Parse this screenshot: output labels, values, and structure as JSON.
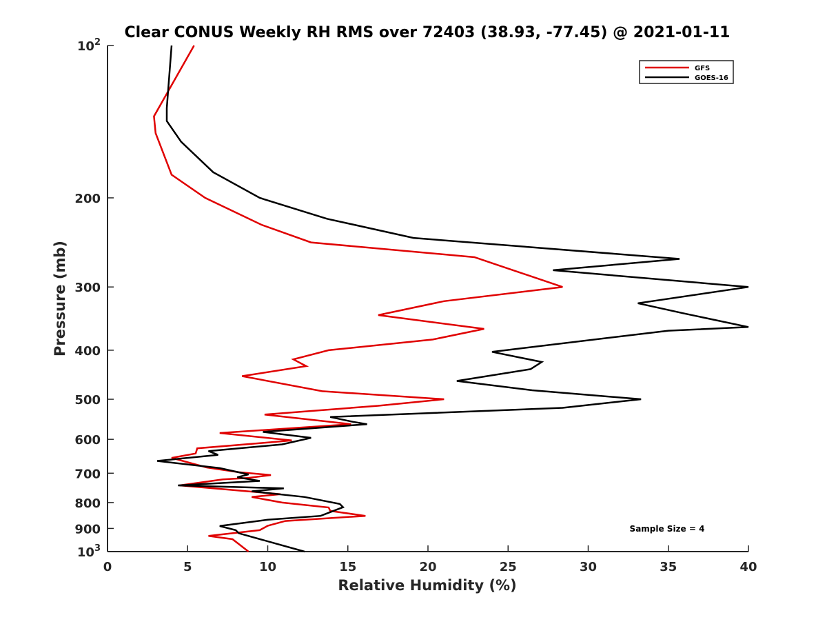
{
  "chart_data": {
    "type": "line",
    "title": "Clear CONUS Weekly RH RMS over 72403 (38.93, -77.45) @ 2021-01-11",
    "xlabel": "Relative Humidity (%)",
    "ylabel": "Pressure (mb)",
    "xlim": [
      0,
      40
    ],
    "ylim": [
      100,
      1000
    ],
    "yscale": "log",
    "y_reversed": true,
    "grid": false,
    "x_ticks": [
      0,
      5,
      10,
      15,
      20,
      25,
      30,
      35,
      40
    ],
    "y_ticks": [
      {
        "value": 100,
        "label": "10",
        "sup": "2"
      },
      {
        "value": 200,
        "label": "200",
        "sup": ""
      },
      {
        "value": 300,
        "label": "300",
        "sup": ""
      },
      {
        "value": 400,
        "label": "400",
        "sup": ""
      },
      {
        "value": 500,
        "label": "500",
        "sup": ""
      },
      {
        "value": 600,
        "label": "600",
        "sup": ""
      },
      {
        "value": 700,
        "label": "700",
        "sup": ""
      },
      {
        "value": 800,
        "label": "800",
        "sup": ""
      },
      {
        "value": 900,
        "label": "900",
        "sup": ""
      },
      {
        "value": 1000,
        "label": "10",
        "sup": "3"
      }
    ],
    "legend_position": "top-right",
    "annotation": "Sample Size = 4",
    "series": [
      {
        "name": "GFS",
        "color": "#e00000",
        "x": [
          5.4,
          2.9,
          3.0,
          4.0,
          6.1,
          9.6,
          12.7,
          22.9,
          28.4,
          21.0,
          16.9,
          23.5,
          20.3,
          13.8,
          11.6,
          12.4,
          8.4,
          13.4,
          21.0,
          16.9,
          9.8,
          15.2,
          7.0,
          11.5,
          9.7,
          5.6,
          5.5,
          4.0,
          6.2,
          8.2,
          10.2,
          8.8,
          7.2,
          4.5,
          10.8,
          9.0,
          10.9,
          13.8,
          13.9,
          16.1,
          11.1,
          10.0,
          9.5,
          6.3,
          7.8,
          8.8
        ],
        "y": [
          100,
          138,
          149,
          180,
          200,
          226,
          245,
          262,
          300,
          320,
          341,
          363,
          381,
          400,
          417,
          430,
          450,
          482,
          500,
          515,
          536,
          560,
          583,
          603,
          610,
          625,
          640,
          653,
          682,
          697,
          706,
          715,
          720,
          740,
          770,
          780,
          800,
          818,
          831,
          850,
          870,
          889,
          907,
          931,
          945,
          1000
        ]
      },
      {
        "name": "GOES-16",
        "color": "#000000",
        "x": [
          4.0,
          3.7,
          3.7,
          4.6,
          6.6,
          9.5,
          13.7,
          19.1,
          35.7,
          27.8,
          40.0,
          33.1,
          35.9,
          40.0,
          35.0,
          24.0,
          27.1,
          26.4,
          21.8,
          26.5,
          33.3,
          28.4,
          13.9,
          15.3,
          16.2,
          9.7,
          12.7,
          10.9,
          6.3,
          6.9,
          3.1,
          7.0,
          8.8,
          8.1,
          9.5,
          4.4,
          11.0,
          9.0,
          12.3,
          14.5,
          14.7,
          13.3,
          10.0,
          7.0,
          8.0,
          8.2,
          12.3
        ],
        "y": [
          100,
          133,
          141,
          155,
          178,
          200,
          220,
          240,
          264,
          278,
          300,
          323,
          338,
          360,
          366,
          403,
          422,
          436,
          460,
          480,
          500,
          520,
          542,
          554,
          560,
          580,
          596,
          614,
          633,
          644,
          662,
          684,
          704,
          713,
          725,
          740,
          750,
          760,
          780,
          805,
          817,
          850,
          865,
          890,
          907,
          920,
          1000
        ]
      }
    ]
  }
}
